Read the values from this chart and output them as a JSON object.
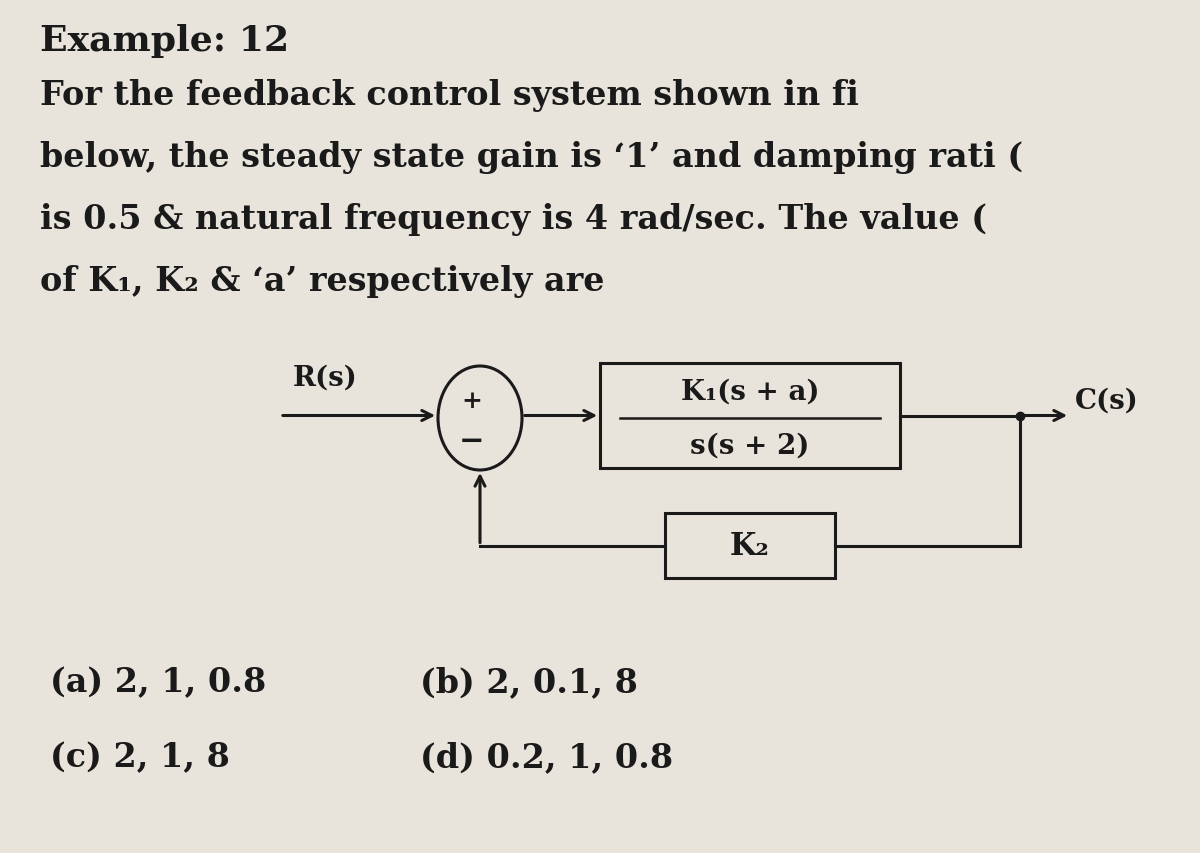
{
  "background_color": "#e8e4dc",
  "title_line1": "Example: 12",
  "body_line1": "For the feedback control system shown in fi",
  "body_line2": "below, the steady state gain is ‘1’ and damping rati (",
  "body_line3": "is 0.5 & natural frequency is 4 rad/sec. The value (",
  "body_line4": "of K₁, K₂ & ‘a’ respectively are",
  "Rs_label": "R(s)",
  "Cs_label": "C(s)",
  "block1_numerator": "K₁(s + a)",
  "block1_denominator": "s(s + 2)",
  "block2_label": "K₂",
  "sumjunction_plus": "+",
  "sumjunction_minus": "−",
  "option_a": "(a) 2, 1, 0.8",
  "option_b": "(b) 2, 0.1, 8",
  "option_c": "(c) 2, 1, 8",
  "option_d": "(d) 0.2, 1, 0.8",
  "text_color": "#1a1a1a",
  "diagram_color": "#1a1a1a",
  "font_size_title": 26,
  "font_size_body": 24,
  "font_size_diagram": 20,
  "font_size_options": 24,
  "fig_width": 12.0,
  "fig_height": 8.54,
  "xlim": [
    0,
    12
  ],
  "ylim": [
    0,
    8.54
  ]
}
